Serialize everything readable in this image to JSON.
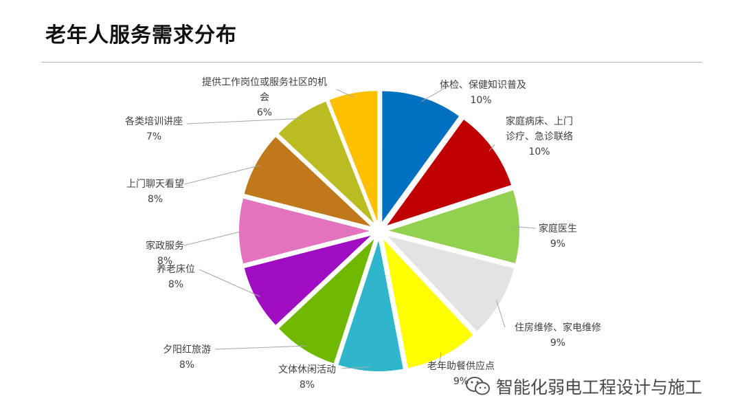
{
  "chart_data": {
    "type": "pie",
    "title": "老年人服务需求分布",
    "slices": [
      {
        "label": "体检、保健知识普及",
        "value": 10,
        "pct_label": "10%",
        "color": "#0070C0"
      },
      {
        "label": "家庭病床、上门诊疗、急诊联络",
        "value": 10,
        "pct_label": "10%",
        "color": "#C00000"
      },
      {
        "label": "家庭医生",
        "value": 9,
        "pct_label": "9%",
        "color": "#92D050"
      },
      {
        "label": "住房维修、家电维修",
        "value": 9,
        "pct_label": "9%",
        "color": "#E3E3E3"
      },
      {
        "label": "老年助餐供应点",
        "value": 9,
        "pct_label": "9%",
        "color": "#FFFF00"
      },
      {
        "label": "文体休闲活动",
        "value": 8,
        "pct_label": "8%",
        "color": "#2FB5CC"
      },
      {
        "label": "夕阳红旅游",
        "value": 8,
        "pct_label": "8%",
        "color": "#70B800"
      },
      {
        "label": "养老床位",
        "value": 8,
        "pct_label": "8%",
        "color": "#A00CC2"
      },
      {
        "label": "家政服务",
        "value": 8,
        "pct_label": "8%",
        "color": "#E373BE"
      },
      {
        "label": "上门聊天看望",
        "value": 8,
        "pct_label": "8%",
        "color": "#C0781A"
      },
      {
        "label": "各类培训讲座",
        "value": 7,
        "pct_label": "7%",
        "color": "#BBBB22"
      },
      {
        "label": "提供工作岗位或服务社区的机会",
        "value": 6,
        "pct_label": "6%",
        "color": "#FFC000"
      }
    ]
  },
  "watermark": {
    "text": "智能化弱电工程设计与施工",
    "icon": "wechat-icon"
  }
}
